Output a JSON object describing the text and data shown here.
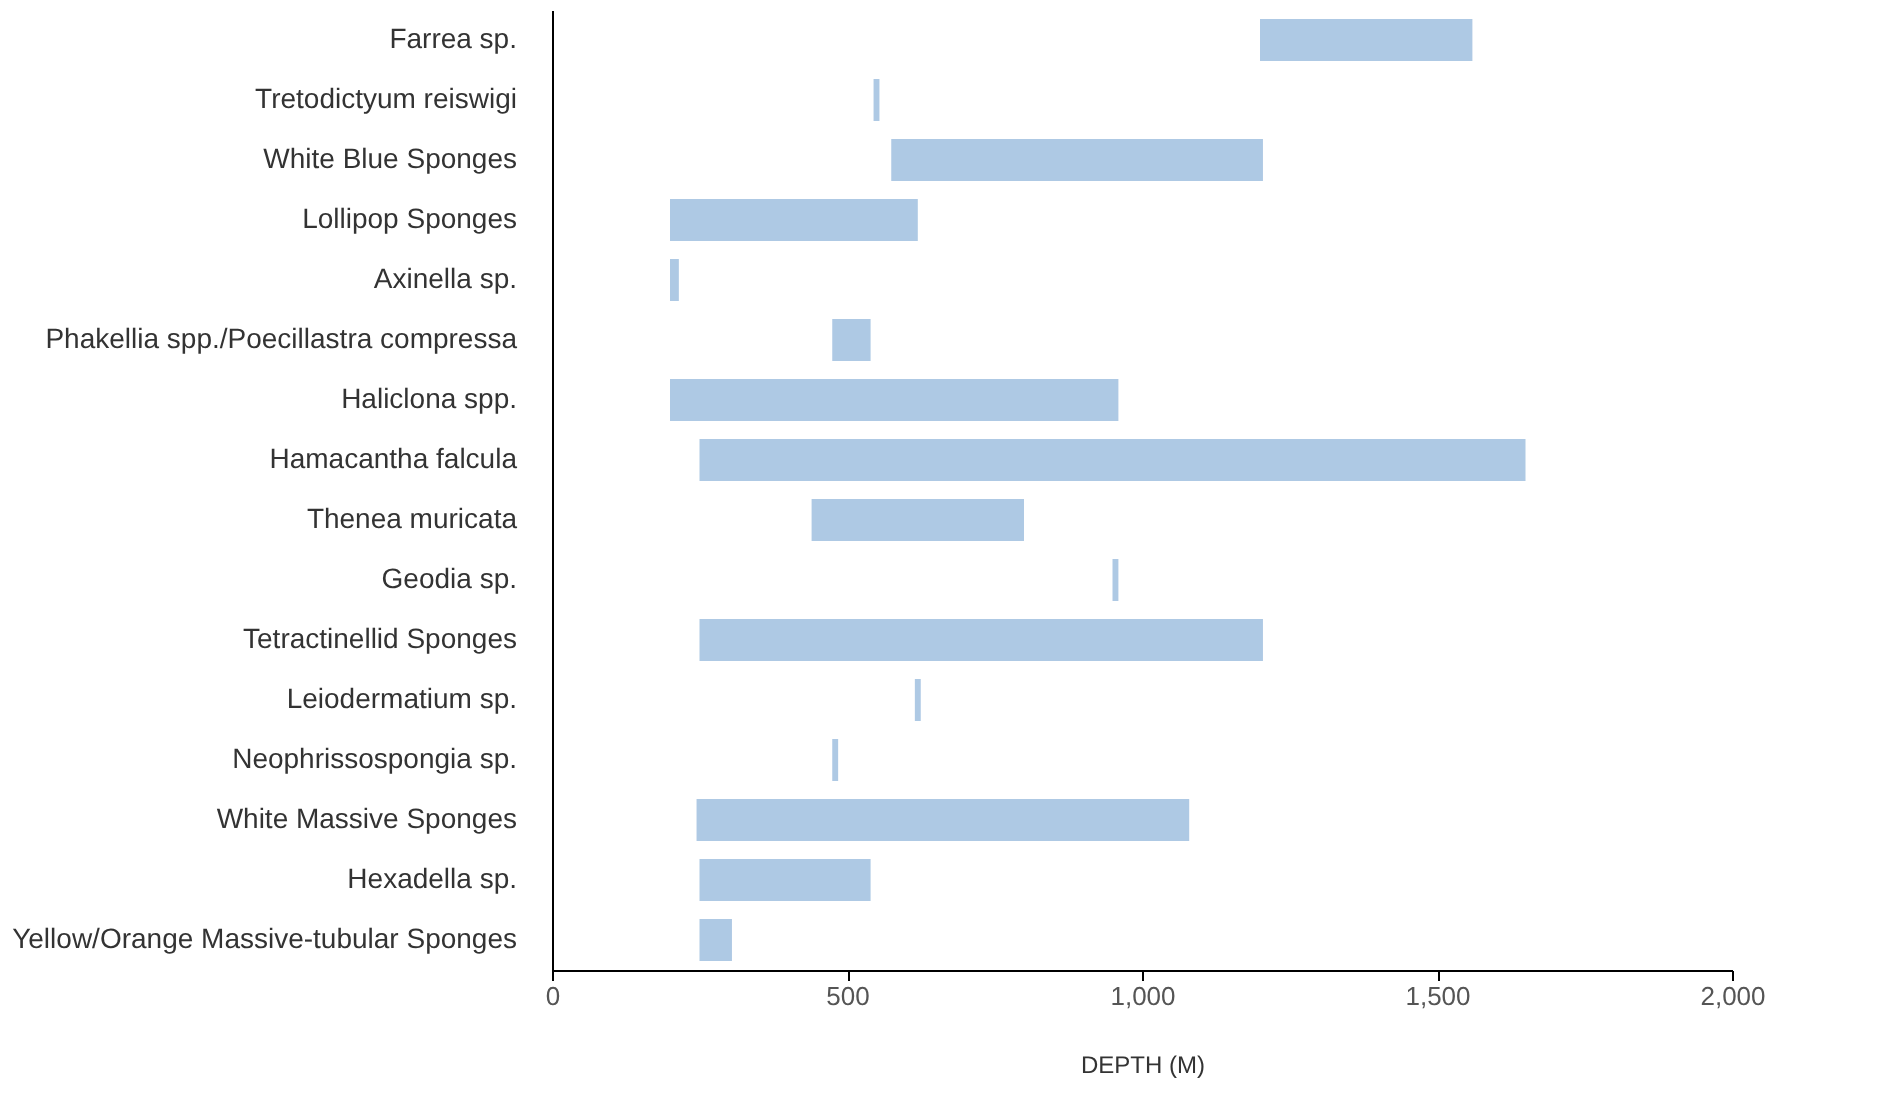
{
  "chart_data": {
    "type": "bar",
    "orientation": "horizontal",
    "xlabel": "DEPTH (M)",
    "categories": [
      "Farrea sp.",
      "Tretodictyum reiswigi",
      "White Blue Sponges",
      "Lollipop Sponges",
      "Axinella sp.",
      "Phakellia spp./Poecillastra compressa",
      "Haliclona spp.",
      "Hamacantha falcula",
      "Thenea muricata",
      "Geodia sp.",
      "Tetractinellid Sponges",
      "Leiodermatium sp.",
      "Neophrissospongia sp.",
      "White Massive Sponges",
      "Hexadella sp.",
      "Yellow/Orange Massive-tubular Sponges"
    ],
    "base": [
      1200,
      545,
      575,
      200,
      200,
      475,
      200,
      250,
      440,
      950,
      250,
      615,
      475,
      245,
      250,
      250
    ],
    "values": [
      360,
      10,
      630,
      420,
      15,
      65,
      760,
      1400,
      360,
      10,
      955,
      10,
      10,
      835,
      290,
      55
    ],
    "color": "#aec9e4",
    "xlim": [
      0,
      2000
    ],
    "xticks": [
      0,
      {
        "value": 500,
        "label": "500"
      },
      {
        "value": 1000,
        "label": "1,000"
      },
      {
        "value": 1500,
        "label": "1,500"
      },
      {
        "value": 2000,
        "label": "2,000"
      }
    ],
    "grid": false
  }
}
